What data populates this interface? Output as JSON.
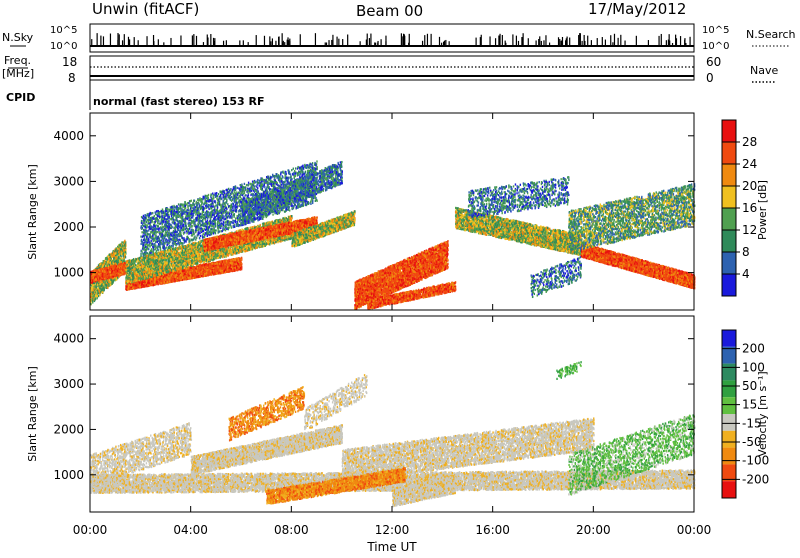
{
  "header": {
    "station": "Unwin (fitACF)",
    "beam": "Beam 00",
    "date": "17/May/2012"
  },
  "status_panel": {
    "nsky_label": "N.Sky",
    "nsearch_label": "N.Search",
    "freq_label_line1": "Freq.",
    "freq_label_line2": "[MHz]",
    "nave_label": "Nave",
    "cpid_label": "CPID",
    "cpid_text": "normal (fast stereo) 153 RF",
    "noise_ticks": [
      "10^5",
      "10^0"
    ],
    "freq_ticks": [
      "18",
      "8"
    ],
    "nave_ticks": [
      "60",
      "0"
    ]
  },
  "colors": {
    "power": [
      "#1a1adc",
      "#2d62b0",
      "#2f8a5a",
      "#50a050",
      "#f0c020",
      "#f08a10",
      "#f04a10",
      "#e81010"
    ],
    "velocity": [
      "#e81010",
      "#f04a10",
      "#f08a10",
      "#f0b020",
      "#c8c8c0",
      "#60c040",
      "#30a040",
      "#2d8a60",
      "#2d62b0",
      "#1a1adc"
    ]
  },
  "chart_data": [
    {
      "type": "heatmap",
      "title": "Power",
      "ylabel": "Slant Range [km]",
      "ylim": [
        180,
        4500
      ],
      "y_ticks": [
        "1000",
        "2000",
        "3000",
        "4000"
      ],
      "colorbar_label": "Power [dB]",
      "colorbar_ticks": [
        "4",
        "8",
        "12",
        "16",
        "20",
        "24",
        "28"
      ],
      "colorbar_range": [
        0,
        32
      ],
      "description_points": [
        {
          "t": 0.3,
          "r": 1100,
          "v": 18
        },
        {
          "t": 1.2,
          "r": 800,
          "v": 22
        },
        {
          "t": 3.0,
          "r": 900,
          "v": 26
        },
        {
          "t": 5.5,
          "r": 1300,
          "v": 24
        },
        {
          "t": 7.0,
          "r": 1700,
          "v": 22
        },
        {
          "t": 9.0,
          "r": 2200,
          "v": 18
        },
        {
          "t": 10.0,
          "r": 2600,
          "v": 14
        },
        {
          "t": 12.5,
          "r": 800,
          "v": 30
        },
        {
          "t": 13.5,
          "r": 1400,
          "v": 24
        },
        {
          "t": 16.0,
          "r": 2100,
          "v": 20
        },
        {
          "t": 18.5,
          "r": 1800,
          "v": 20
        },
        {
          "t": 20.5,
          "r": 1300,
          "v": 26
        },
        {
          "t": 23.0,
          "r": 900,
          "v": 26
        }
      ]
    },
    {
      "type": "heatmap",
      "title": "Velocity",
      "ylabel": "Slant Range [km]",
      "xlabel": "Time UT",
      "ylim": [
        180,
        4500
      ],
      "y_ticks": [
        "1000",
        "2000",
        "3000",
        "4000"
      ],
      "x_ticks": [
        "00:00",
        "04:00",
        "08:00",
        "12:00",
        "16:00",
        "20:00",
        "00:00"
      ],
      "xlim_hours": [
        0,
        24
      ],
      "colorbar_label": "Velocity [m s⁻¹]",
      "colorbar_ticks": [
        "-200",
        "-100",
        "-50",
        "-15",
        "15",
        "50",
        "100",
        "200"
      ]
    }
  ]
}
